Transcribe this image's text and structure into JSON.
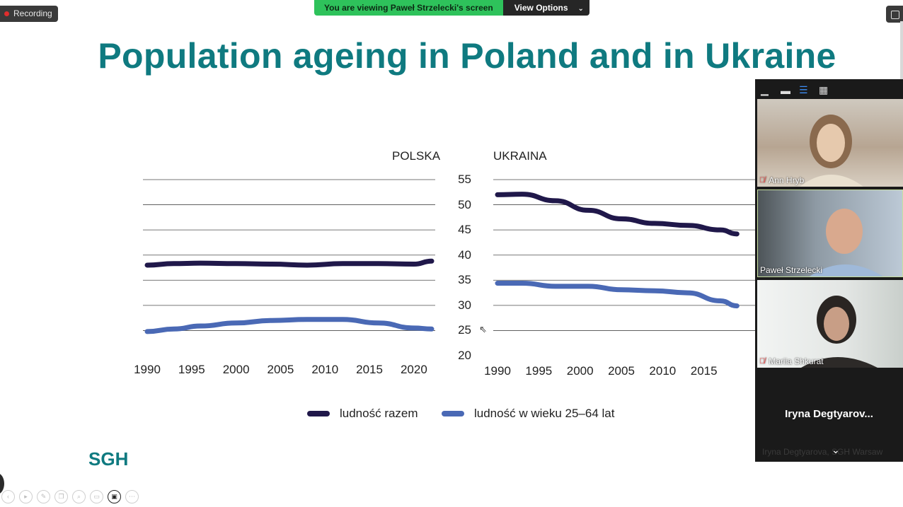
{
  "zoom_overlay": {
    "recording_label": "Recording",
    "banner_text": "You are viewing Paweł Strzelecki's screen",
    "view_options_label": "View Options"
  },
  "slide": {
    "title": "Population ageing in Poland and in Ukraine",
    "logo_text": "SGH"
  },
  "chart_data": [
    {
      "type": "line",
      "title": "POLSKA",
      "x": [
        1990,
        1993,
        1996,
        2000,
        2004,
        2008,
        2012,
        2016,
        2020,
        2022
      ],
      "series": [
        {
          "name": "ludność razem",
          "color": "#20184a",
          "values": [
            38.0,
            38.3,
            38.4,
            38.3,
            38.2,
            38.0,
            38.3,
            38.3,
            38.2,
            38.8
          ]
        },
        {
          "name": "ludność w wieku 25–64 lat",
          "color": "#4a69b5",
          "values": [
            24.8,
            25.3,
            25.9,
            26.5,
            27.0,
            27.2,
            27.2,
            26.5,
            25.5,
            25.3
          ]
        }
      ],
      "ylim": [
        20,
        55
      ],
      "xticks": [
        "1990",
        "1995",
        "2000",
        "2005",
        "2010",
        "2015",
        "2020"
      ],
      "grid": true
    },
    {
      "type": "line",
      "title": "UKRAINA",
      "x": [
        1990,
        1993,
        1997,
        2001,
        2005,
        2009,
        2013,
        2017,
        2019
      ],
      "series": [
        {
          "name": "ludność razem",
          "color": "#20184a",
          "values": [
            52.0,
            52.1,
            50.8,
            48.9,
            47.2,
            46.3,
            45.9,
            45.0,
            44.2
          ]
        },
        {
          "name": "ludność w wieku 25–64 lat",
          "color": "#4a69b5",
          "values": [
            34.4,
            34.4,
            33.8,
            33.8,
            33.1,
            32.9,
            32.5,
            30.9,
            29.9
          ]
        }
      ],
      "ylim": [
        20,
        55
      ],
      "yticks": [
        "55",
        "50",
        "45",
        "40",
        "35",
        "30",
        "25",
        "20"
      ],
      "xticks": [
        "1990",
        "1995",
        "2000",
        "2005",
        "2010",
        "2015"
      ],
      "grid": true
    }
  ],
  "legend": {
    "total_label": "ludność razem",
    "working_age_label": "ludność w wieku 25–64 lat"
  },
  "participants": {
    "p1": "Ann Hryb",
    "p2": "Paweł Strzelecki",
    "p3": "Mariia Shkurat",
    "p4_big": "Iryna  Degtyarov...",
    "p4_sub": "Iryna Degtyarova, SGH Warsaw"
  },
  "colors": {
    "accent": "#0f7a80",
    "banner_green": "#2ec25b",
    "series_dark": "#20184a",
    "series_blue": "#4a69b5"
  },
  "icons": [
    "minimize-icon",
    "speaker-view-icon",
    "strip-view-icon",
    "gallery-view-icon",
    "mic-muted-icon",
    "chevron-down-icon"
  ]
}
